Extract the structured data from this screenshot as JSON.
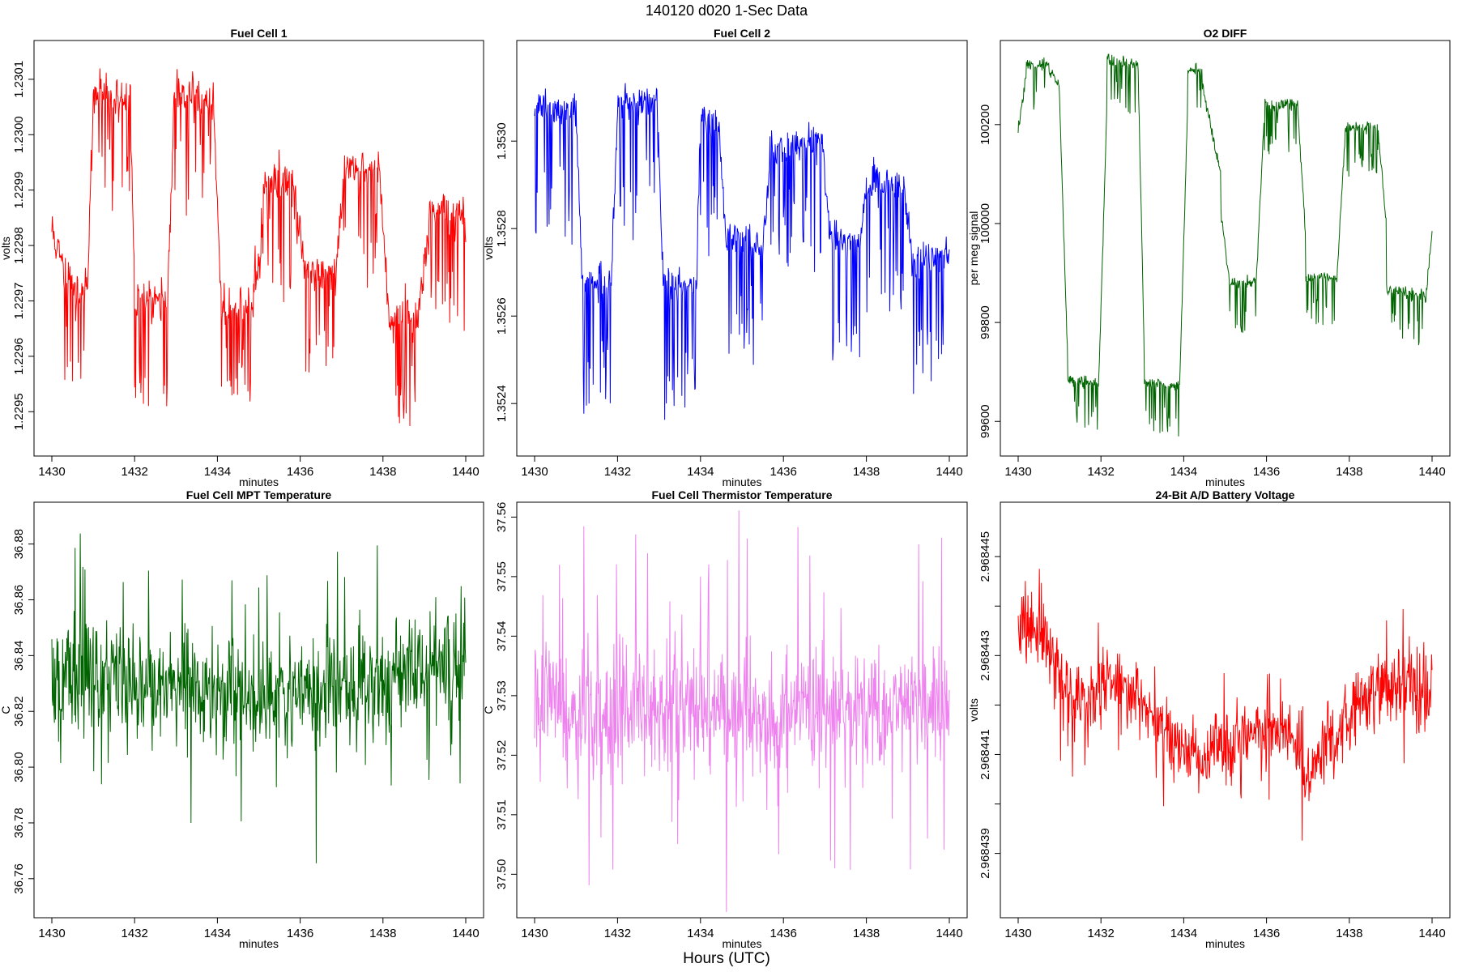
{
  "figure": {
    "title": "140120    d020    1-Sec Data",
    "xlabel": "Hours (UTC)"
  },
  "chart_data": [
    {
      "type": "line",
      "title": "Fuel Cell 1",
      "xlabel": "minutes",
      "ylabel": "volts",
      "color": "#ff0000",
      "xlim": [
        1430,
        1440
      ],
      "ylim": [
        1.22942,
        1.23017
      ],
      "xticks": [
        1430,
        1432,
        1434,
        1436,
        1438,
        1440
      ],
      "xtick_labels": [
        "1430",
        "1432",
        "1434",
        "1436",
        "1438",
        "1440"
      ],
      "yticks": [
        1.2295,
        1.2296,
        1.2297,
        1.2298,
        1.2299,
        1.23,
        1.2301
      ],
      "ytick_labels": [
        "1.2295",
        "1.2296",
        "1.2297",
        "1.2298",
        "1.2299",
        "1.2300",
        "1.2301"
      ],
      "levels": [
        {
          "x0": 1430.0,
          "x1": 1430.3,
          "y0": 1.22983,
          "y1": 1.22975
        },
        {
          "x0": 1430.3,
          "x1": 1430.85,
          "y0": 1.22974,
          "y1": 1.22971
        },
        {
          "x0": 1430.85,
          "x1": 1431.0,
          "y0": 1.22971,
          "y1": 1.23005
        },
        {
          "x0": 1431.0,
          "x1": 1431.9,
          "y0": 1.23008,
          "y1": 1.23006
        },
        {
          "x0": 1431.9,
          "x1": 1432.0,
          "y0": 1.23006,
          "y1": 1.22971
        },
        {
          "x0": 1432.0,
          "x1": 1432.8,
          "y0": 1.2297,
          "y1": 1.2297
        },
        {
          "x0": 1432.8,
          "x1": 1432.95,
          "y0": 1.2297,
          "y1": 1.23005
        },
        {
          "x0": 1432.95,
          "x1": 1433.9,
          "y0": 1.23008,
          "y1": 1.23006
        },
        {
          "x0": 1433.9,
          "x1": 1434.1,
          "y0": 1.23006,
          "y1": 1.2297
        },
        {
          "x0": 1434.1,
          "x1": 1434.85,
          "y0": 1.22969,
          "y1": 1.22969
        },
        {
          "x0": 1434.85,
          "x1": 1435.1,
          "y0": 1.22969,
          "y1": 1.22983
        },
        {
          "x0": 1435.1,
          "x1": 1435.85,
          "y0": 1.22992,
          "y1": 1.22991
        },
        {
          "x0": 1435.85,
          "x1": 1436.1,
          "y0": 1.2299,
          "y1": 1.22976
        },
        {
          "x0": 1436.1,
          "x1": 1436.85,
          "y0": 1.22975,
          "y1": 1.22975
        },
        {
          "x0": 1436.85,
          "x1": 1437.05,
          "y0": 1.22975,
          "y1": 1.22992
        },
        {
          "x0": 1437.05,
          "x1": 1437.9,
          "y0": 1.22994,
          "y1": 1.22994
        },
        {
          "x0": 1437.9,
          "x1": 1438.15,
          "y0": 1.22994,
          "y1": 1.22968
        },
        {
          "x0": 1438.15,
          "x1": 1438.85,
          "y0": 1.22967,
          "y1": 1.22967
        },
        {
          "x0": 1438.85,
          "x1": 1439.1,
          "y0": 1.22967,
          "y1": 1.22985
        },
        {
          "x0": 1439.1,
          "x1": 1440.0,
          "y0": 1.22986,
          "y1": 1.22985
        }
      ],
      "noise": 2e-05,
      "spike_depth": 0.00018,
      "spike_dir": -1,
      "seed": 11
    },
    {
      "type": "line",
      "title": "Fuel Cell 2",
      "xlabel": "minutes",
      "ylabel": "volts",
      "color": "#0000ff",
      "xlim": [
        1430,
        1440
      ],
      "ylim": [
        1.35228,
        1.35323
      ],
      "xticks": [
        1430,
        1432,
        1434,
        1436,
        1438,
        1440
      ],
      "xtick_labels": [
        "1430",
        "1432",
        "1434",
        "1436",
        "1438",
        "1440"
      ],
      "yticks": [
        1.3524,
        1.3526,
        1.3528,
        1.353
      ],
      "ytick_labels": [
        "1.3524",
        "1.3526",
        "1.3528",
        "1.3530"
      ],
      "levels": [
        {
          "x0": 1430.0,
          "x1": 1431.0,
          "y0": 1.35308,
          "y1": 1.35306
        },
        {
          "x0": 1431.0,
          "x1": 1431.15,
          "y0": 1.35306,
          "y1": 1.35268
        },
        {
          "x0": 1431.15,
          "x1": 1431.85,
          "y0": 1.35268,
          "y1": 1.35268
        },
        {
          "x0": 1431.85,
          "x1": 1432.0,
          "y0": 1.35268,
          "y1": 1.35306
        },
        {
          "x0": 1432.0,
          "x1": 1432.95,
          "y0": 1.35309,
          "y1": 1.35309
        },
        {
          "x0": 1432.95,
          "x1": 1433.1,
          "y0": 1.35309,
          "y1": 1.35268
        },
        {
          "x0": 1433.1,
          "x1": 1433.9,
          "y0": 1.35267,
          "y1": 1.35266
        },
        {
          "x0": 1433.9,
          "x1": 1434.0,
          "y0": 1.35266,
          "y1": 1.35304
        },
        {
          "x0": 1434.0,
          "x1": 1434.45,
          "y0": 1.35306,
          "y1": 1.35304
        },
        {
          "x0": 1434.45,
          "x1": 1434.6,
          "y0": 1.35303,
          "y1": 1.35279
        },
        {
          "x0": 1434.6,
          "x1": 1435.5,
          "y0": 1.35278,
          "y1": 1.35276
        },
        {
          "x0": 1435.5,
          "x1": 1435.7,
          "y0": 1.35275,
          "y1": 1.35297
        },
        {
          "x0": 1435.7,
          "x1": 1436.95,
          "y0": 1.35299,
          "y1": 1.353
        },
        {
          "x0": 1436.95,
          "x1": 1437.1,
          "y0": 1.35298,
          "y1": 1.35279
        },
        {
          "x0": 1437.1,
          "x1": 1437.85,
          "y0": 1.35278,
          "y1": 1.35277
        },
        {
          "x0": 1437.85,
          "x1": 1438.0,
          "y0": 1.35277,
          "y1": 1.35288
        },
        {
          "x0": 1438.0,
          "x1": 1438.9,
          "y0": 1.3529,
          "y1": 1.3529
        },
        {
          "x0": 1438.9,
          "x1": 1439.1,
          "y0": 1.35289,
          "y1": 1.35274
        },
        {
          "x0": 1439.1,
          "x1": 1440.0,
          "y0": 1.35272,
          "y1": 1.35275
        }
      ],
      "noise": 2e-05,
      "spike_depth": 0.00028,
      "spike_dir": -1,
      "seed": 23
    },
    {
      "type": "line",
      "title": "O2 DIFF",
      "xlabel": "minutes",
      "ylabel": "per meg signal",
      "color": "#006400",
      "xlim": [
        1430,
        1440
      ],
      "ylim": [
        99530,
        100370
      ],
      "xticks": [
        1430,
        1432,
        1434,
        1436,
        1438,
        1440
      ],
      "xtick_labels": [
        "1430",
        "1432",
        "1434",
        "1436",
        "1438",
        "1440"
      ],
      "yticks": [
        99600,
        99800,
        100000,
        100200
      ],
      "ytick_labels": [
        "99600",
        "99800",
        "100000",
        "100200"
      ],
      "levels": [
        {
          "x0": 1430.0,
          "x1": 1430.2,
          "y0": 100190,
          "y1": 100300
        },
        {
          "x0": 1430.2,
          "x1": 1430.75,
          "y0": 100320,
          "y1": 100320
        },
        {
          "x0": 1430.75,
          "x1": 1431.0,
          "y0": 100310,
          "y1": 100280
        },
        {
          "x0": 1431.0,
          "x1": 1431.2,
          "y0": 100250,
          "y1": 99720
        },
        {
          "x0": 1431.2,
          "x1": 1431.95,
          "y0": 99680,
          "y1": 99680
        },
        {
          "x0": 1431.95,
          "x1": 1432.15,
          "y0": 99690,
          "y1": 100250
        },
        {
          "x0": 1432.15,
          "x1": 1432.9,
          "y0": 100330,
          "y1": 100320
        },
        {
          "x0": 1432.9,
          "x1": 1433.05,
          "y0": 100310,
          "y1": 99720
        },
        {
          "x0": 1433.05,
          "x1": 1433.9,
          "y0": 99680,
          "y1": 99670
        },
        {
          "x0": 1433.9,
          "x1": 1434.1,
          "y0": 99670,
          "y1": 100250
        },
        {
          "x0": 1434.1,
          "x1": 1434.45,
          "y0": 100310,
          "y1": 100310
        },
        {
          "x0": 1434.45,
          "x1": 1434.9,
          "y0": 100280,
          "y1": 100100
        },
        {
          "x0": 1434.9,
          "x1": 1435.1,
          "y0": 100020,
          "y1": 99890
        },
        {
          "x0": 1435.1,
          "x1": 1435.75,
          "y0": 99880,
          "y1": 99880
        },
        {
          "x0": 1435.75,
          "x1": 1435.95,
          "y0": 99880,
          "y1": 100230
        },
        {
          "x0": 1435.95,
          "x1": 1436.75,
          "y0": 100240,
          "y1": 100240
        },
        {
          "x0": 1436.75,
          "x1": 1436.95,
          "y0": 100240,
          "y1": 99970
        },
        {
          "x0": 1436.95,
          "x1": 1437.7,
          "y0": 99890,
          "y1": 99890
        },
        {
          "x0": 1437.7,
          "x1": 1437.9,
          "y0": 99890,
          "y1": 100180
        },
        {
          "x0": 1437.9,
          "x1": 1438.7,
          "y0": 100195,
          "y1": 100195
        },
        {
          "x0": 1438.7,
          "x1": 1438.9,
          "y0": 100190,
          "y1": 99990
        },
        {
          "x0": 1438.9,
          "x1": 1439.85,
          "y0": 99870,
          "y1": 99850
        },
        {
          "x0": 1439.85,
          "x1": 1440.0,
          "y0": 99850,
          "y1": 99990
        }
      ],
      "noise": 6,
      "spike_depth": 95,
      "spike_dir": -1,
      "seed": 37
    },
    {
      "type": "line",
      "title": "Fuel Cell MPT Temperature",
      "xlabel": "minutes",
      "ylabel": "C",
      "color": "#006400",
      "xlim": [
        1430,
        1440
      ],
      "ylim": [
        36.746,
        36.895
      ],
      "xticks": [
        1430,
        1432,
        1434,
        1436,
        1438,
        1440
      ],
      "xtick_labels": [
        "1430",
        "1432",
        "1434",
        "1436",
        "1438",
        "1440"
      ],
      "yticks": [
        36.76,
        36.78,
        36.8,
        36.82,
        36.84,
        36.86,
        36.88
      ],
      "ytick_labels": [
        "36.76",
        "36.78",
        "36.80",
        "36.82",
        "36.84",
        "36.86",
        "36.88"
      ],
      "noise_series": {
        "base": 36.832,
        "drift": [
          [
            1430,
            36.832
          ],
          [
            1434,
            36.828
          ],
          [
            1436,
            36.826
          ],
          [
            1438,
            36.832
          ],
          [
            1440,
            36.838
          ]
        ],
        "amp": 0.017,
        "outlier_amp": 0.048,
        "outlier_rate": 0.05,
        "seed": 51
      }
    },
    {
      "type": "line",
      "title": "Fuel Cell Thermistor Temperature",
      "xlabel": "minutes",
      "ylabel": "C",
      "color": "#ee82ee",
      "xlim": [
        1430,
        1440
      ],
      "ylim": [
        37.4927,
        37.5625
      ],
      "xticks": [
        1430,
        1432,
        1434,
        1436,
        1438,
        1440
      ],
      "xtick_labels": [
        "1430",
        "1432",
        "1434",
        "1436",
        "1438",
        "1440"
      ],
      "yticks": [
        37.5,
        37.51,
        37.52,
        37.53,
        37.54,
        37.55,
        37.56
      ],
      "ytick_labels": [
        "37.50",
        "37.51",
        "37.52",
        "37.53",
        "37.54",
        "37.55",
        "37.56"
      ],
      "noise_series": {
        "base": 37.527,
        "drift": [
          [
            1430,
            37.528
          ],
          [
            1434,
            37.526
          ],
          [
            1436,
            37.527
          ],
          [
            1440,
            37.528
          ]
        ],
        "amp": 0.0085,
        "outlier_amp": 0.026,
        "outlier_rate": 0.05,
        "seed": 67
      }
    },
    {
      "type": "line",
      "title": "24-Bit A/D Battery Voltage",
      "xlabel": "minutes",
      "ylabel": "volts",
      "color": "#ff0000",
      "xlim": [
        1430,
        1440
      ],
      "ylim": [
        2.9684377,
        2.9684461
      ],
      "xticks": [
        1430,
        1432,
        1434,
        1436,
        1438,
        1440
      ],
      "xtick_labels": [
        "1430",
        "1432",
        "1434",
        "1436",
        "1438",
        "1440"
      ],
      "yticks": [
        2.968439,
        2.96844,
        2.968441,
        2.968442,
        2.968443,
        2.968444,
        2.968445
      ],
      "ytick_labels": [
        "2.968439",
        "",
        "2.968441",
        "",
        "2.968443",
        "",
        "2.968445"
      ],
      "noise_series": {
        "base": 2.9684425,
        "drift": [
          [
            1430,
            2.9684436
          ],
          [
            1430.6,
            2.9684436
          ],
          [
            1431.2,
            2.9684421
          ],
          [
            1432.6,
            2.9684425
          ],
          [
            1433.2,
            2.9684417
          ],
          [
            1434.3,
            2.9684408
          ],
          [
            1435,
            2.9684413
          ],
          [
            1436.5,
            2.9684415
          ],
          [
            1437,
            2.9684405
          ],
          [
            1437.5,
            2.9684413
          ],
          [
            1438.5,
            2.9684422
          ],
          [
            1439.3,
            2.9684425
          ],
          [
            1440,
            2.9684422
          ]
        ],
        "amp": 6e-07,
        "outlier_amp": 1.4e-06,
        "outlier_rate": 0.05,
        "seed": 83
      }
    }
  ]
}
